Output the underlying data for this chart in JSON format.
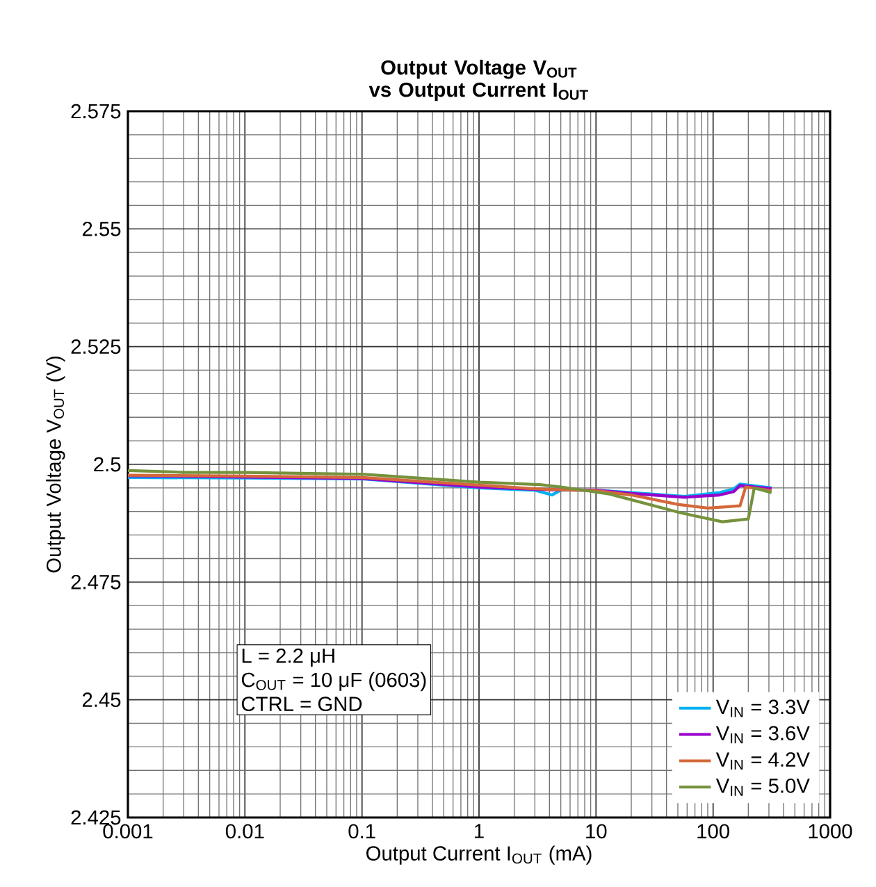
{
  "chart_data": {
    "type": "line",
    "title": "Output Voltage V$_{OUT}$ vs Output Current I$_{OUT}$",
    "xlabel": "Output Current I$_{OUT}$ (mA)",
    "ylabel": "Output Voltage V$_{OUT}$ (V)",
    "log": "x",
    "grid": true,
    "legend": "bottom right",
    "marker": "none",
    "line_style": "solid",
    "xlim": [
      0.001,
      1000
    ],
    "xticks": [
      0.001,
      0.01,
      0.1,
      1,
      10,
      100,
      1000
    ],
    "ylim": [
      2.425,
      2.575
    ],
    "yticks": [
      2.425,
      2.45,
      2.475,
      2.5,
      2.525,
      2.55,
      2.575
    ],
    "annotations": [
      "L = 2.2 μH",
      "C$_{OUT}$ = 10 μF (0603)",
      "CTRL = GND"
    ],
    "series": [
      {
        "name": "V$_{IN}$ = 3.3V",
        "color": "#00b0f0",
        "x": [
          0.001,
          0.01,
          0.1,
          1,
          3,
          4.2,
          5,
          10,
          20,
          57,
          114,
          150,
          170,
          316
        ],
        "values": [
          2.4972,
          2.4971,
          2.4969,
          2.495,
          2.4945,
          2.4935,
          2.4945,
          2.4945,
          2.494,
          2.4932,
          2.494,
          2.4948,
          2.4958,
          2.495
        ]
      },
      {
        "name": "V$_{IN}$ = 3.6V",
        "color": "#9900cc",
        "x": [
          0.001,
          0.01,
          0.1,
          1,
          3,
          4.2,
          5,
          10,
          20,
          57,
          114,
          150,
          170,
          316
        ],
        "values": [
          2.4976,
          2.4973,
          2.497,
          2.4952,
          2.4947,
          2.4946,
          2.4946,
          2.4945,
          2.4938,
          2.493,
          2.4935,
          2.4942,
          2.4955,
          2.4948
        ]
      },
      {
        "name": "V$_{IN}$ = 4.2V",
        "color": "#d4683a",
        "x": [
          0.001,
          0.01,
          0.1,
          1,
          3,
          5,
          10,
          20,
          50,
          92,
          170,
          190,
          316
        ],
        "values": [
          2.4977,
          2.4975,
          2.4972,
          2.4956,
          2.4948,
          2.4946,
          2.4944,
          2.4935,
          2.4915,
          2.4907,
          2.4912,
          2.4952,
          2.4944
        ]
      },
      {
        "name": "V$_{IN}$ = 5.0V",
        "color": "#76923c",
        "x": [
          0.001,
          0.003,
          0.01,
          0.1,
          1,
          3.3,
          5,
          13,
          53,
          120,
          200,
          225,
          316
        ],
        "values": [
          2.4987,
          2.4983,
          2.4983,
          2.4979,
          2.4962,
          2.4957,
          2.4952,
          2.4937,
          2.4897,
          2.4878,
          2.4884,
          2.495,
          2.494
        ]
      }
    ]
  }
}
